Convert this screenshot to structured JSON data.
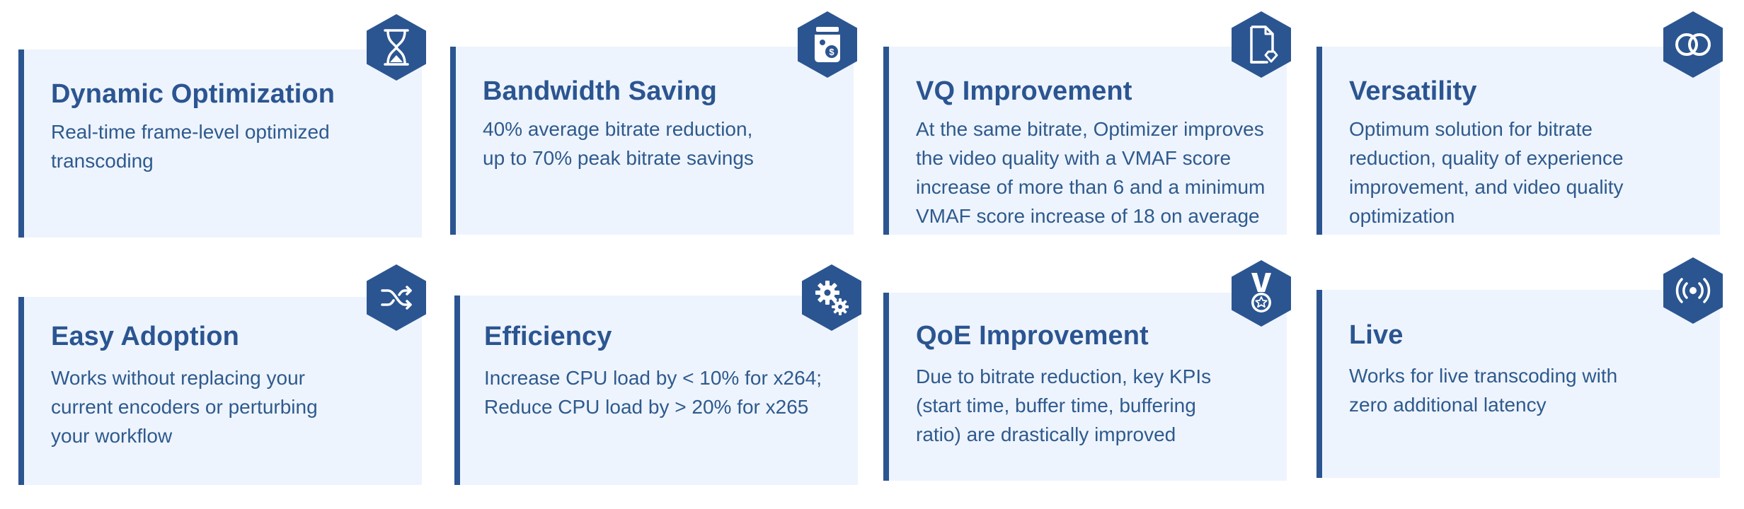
{
  "cards": [
    {
      "title": "Dynamic Optimization",
      "lines": [
        "Real-time frame-level optimized",
        "transcoding"
      ],
      "icon": "hourglass-icon"
    },
    {
      "title": "Bandwidth Saving",
      "lines": [
        "40% average bitrate reduction,",
        "up to 70% peak bitrate savings"
      ],
      "icon": "money-jar-icon"
    },
    {
      "title": "VQ Improvement",
      "lines": [
        "At the same bitrate, Optimizer improves",
        "the video quality with a VMAF score",
        "increase of more than 6 and a minimum",
        "VMAF score increase of 18 on average"
      ],
      "icon": "document-diamond-icon"
    },
    {
      "title": "Versatility",
      "lines": [
        "Optimum solution for bitrate",
        "reduction, quality of experience",
        "improvement, and video quality",
        "optimization"
      ],
      "icon": "interlocking-rings-icon"
    },
    {
      "title": "Easy Adoption",
      "lines": [
        "Works without replacing your",
        "current encoders or perturbing",
        "your workflow"
      ],
      "icon": "shuffle-icon"
    },
    {
      "title": "Efficiency",
      "lines": [
        "Increase CPU load by < 10% for x264;",
        "Reduce CPU load by > 20% for x265"
      ],
      "icon": "gears-icon"
    },
    {
      "title": "QoE Improvement",
      "lines": [
        "Due to bitrate reduction, key KPIs",
        "(start time, buffer time, buffering",
        "ratio) are drastically improved"
      ],
      "icon": "medal-icon"
    },
    {
      "title": "Live",
      "lines": [
        "Works for live transcoding with",
        "zero additional latency"
      ],
      "icon": "broadcast-icon"
    }
  ],
  "colors": {
    "accent": "#2b5591",
    "card_bg": "#eef4fd",
    "text": "#2e5a8e"
  }
}
